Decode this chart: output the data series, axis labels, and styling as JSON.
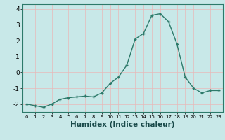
{
  "x": [
    0,
    1,
    2,
    3,
    4,
    5,
    6,
    7,
    8,
    9,
    10,
    11,
    12,
    13,
    14,
    15,
    16,
    17,
    18,
    19,
    20,
    21,
    22,
    23
  ],
  "y": [
    -2.0,
    -2.1,
    -2.2,
    -2.0,
    -1.7,
    -1.6,
    -1.55,
    -1.5,
    -1.55,
    -1.3,
    -0.7,
    -0.3,
    0.45,
    2.1,
    2.45,
    3.6,
    3.7,
    3.2,
    1.8,
    -0.3,
    -1.0,
    -1.3,
    -1.15,
    -1.15
  ],
  "xlabel": "Humidex (Indice chaleur)",
  "line_color": "#2d7a6a",
  "marker_color": "#2d7a6a",
  "bg_color": "#c8e8e8",
  "grid_color": "#e8b8b8",
  "ylim": [
    -2.5,
    4.3
  ],
  "xlim": [
    -0.5,
    23.5
  ],
  "yticks": [
    -2,
    -1,
    0,
    1,
    2,
    3,
    4
  ],
  "xticks": [
    0,
    1,
    2,
    3,
    4,
    5,
    6,
    7,
    8,
    9,
    10,
    11,
    12,
    13,
    14,
    15,
    16,
    17,
    18,
    19,
    20,
    21,
    22,
    23
  ],
  "xlabel_fontsize": 7.5,
  "tick_fontsize": 6.5
}
